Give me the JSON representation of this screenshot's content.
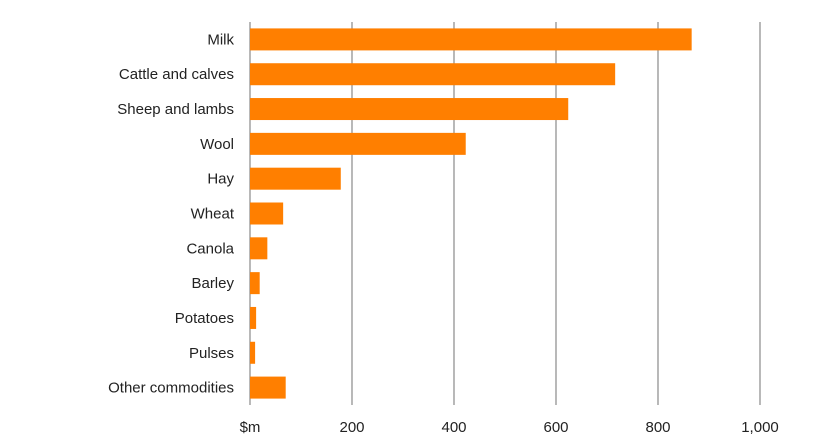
{
  "chart_data": {
    "type": "bar",
    "orientation": "horizontal",
    "categories": [
      "Milk",
      "Cattle and calves",
      "Sheep and lambs",
      "Wool",
      "Hay",
      "Wheat",
      "Canola",
      "Barley",
      "Potatoes",
      "Pulses",
      "Other commodities"
    ],
    "values": [
      866,
      716,
      624,
      423,
      178,
      65,
      34,
      19,
      12,
      10,
      70
    ],
    "xlim": [
      0,
      1000
    ],
    "x_ticks": [
      0,
      200,
      400,
      600,
      800,
      1000
    ],
    "x_tick_labels": [
      "$m",
      "200",
      "400",
      "600",
      "800",
      "1,000"
    ],
    "title": "",
    "xlabel": "",
    "ylabel": "",
    "grid": "vertical",
    "legend": "none",
    "bar_color": "#FF7F00",
    "grid_color": "#8a8a8a"
  }
}
